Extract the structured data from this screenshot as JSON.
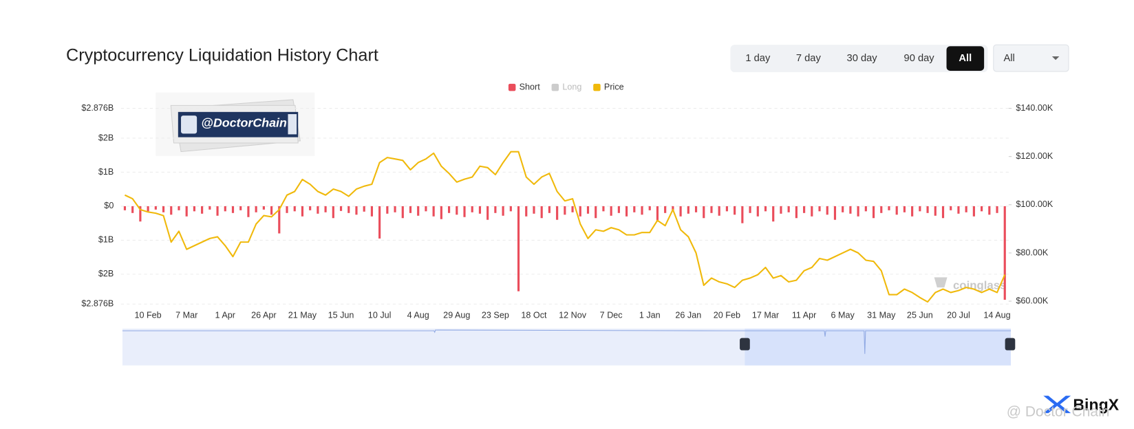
{
  "toolbar": {
    "ranges": [
      "1 day",
      "7 day",
      "30 day",
      "90 day",
      "All"
    ],
    "active": 4,
    "dropdown": "All"
  },
  "watermarks": {
    "badge": "@DoctorChain",
    "source": "coinglass",
    "brand": "BingX",
    "credit": "@ Doctor Chain"
  },
  "chart_data": {
    "type": "combo",
    "title": "Cryptocurrency Liquidation History Chart",
    "legend": "top",
    "grid": true,
    "categories": [
      null,
      null,
      null,
      "10 Feb",
      null,
      null,
      null,
      null,
      "7 Mar",
      null,
      null,
      null,
      null,
      "1 Apr",
      null,
      null,
      null,
      null,
      "26 Apr",
      null,
      null,
      null,
      null,
      "21 May",
      null,
      null,
      null,
      null,
      "15 Jun",
      null,
      null,
      null,
      null,
      "10 Jul",
      null,
      null,
      null,
      null,
      "4 Aug",
      null,
      null,
      null,
      null,
      "29 Aug",
      null,
      null,
      null,
      null,
      "23 Sep",
      null,
      null,
      null,
      null,
      "18 Oct",
      null,
      null,
      null,
      null,
      "12 Nov",
      null,
      null,
      null,
      null,
      "7 Dec",
      null,
      null,
      null,
      null,
      "1 Jan",
      null,
      null,
      null,
      null,
      "26 Jan",
      null,
      null,
      null,
      null,
      "20 Feb",
      null,
      null,
      null,
      null,
      "17 Mar",
      null,
      null,
      null,
      null,
      "11 Apr",
      null,
      null,
      null,
      null,
      "6 May",
      null,
      null,
      null,
      null,
      "31 May",
      null,
      null,
      null,
      null,
      "25 Jun",
      null,
      null,
      null,
      null,
      "20 Jul",
      null,
      null,
      null,
      null,
      "14 Aug",
      null
    ],
    "series": [
      {
        "name": "Short",
        "color": "#ea4d5b",
        "axis": "y",
        "values": [
          -0.12,
          -0.2,
          -0.45,
          -0.15,
          -0.1,
          -0.18,
          -0.25,
          -0.12,
          -0.3,
          -0.15,
          -0.22,
          -0.1,
          -0.28,
          -0.15,
          -0.2,
          -0.12,
          -0.32,
          -0.18,
          -0.1,
          -0.25,
          -0.8,
          -0.2,
          -0.15,
          -0.3,
          -0.12,
          -0.22,
          -0.18,
          -0.35,
          -0.14,
          -0.2,
          -0.25,
          -0.16,
          -0.3,
          -0.95,
          -0.22,
          -0.18,
          -0.35,
          -0.2,
          -0.28,
          -0.15,
          -0.3,
          -0.38,
          -0.2,
          -0.25,
          -0.32,
          -0.18,
          -0.22,
          -0.4,
          -0.2,
          -0.28,
          -0.15,
          -2.5,
          -0.3,
          -0.22,
          -0.35,
          -0.2,
          -0.4,
          -0.25,
          -0.18,
          -0.3,
          -0.22,
          -0.35,
          -0.15,
          -0.28,
          -0.2,
          -0.3,
          -0.18,
          -0.25,
          -0.12,
          -0.45,
          -0.2,
          -0.15,
          -0.3,
          -0.22,
          -0.18,
          -0.35,
          -0.2,
          -0.28,
          -0.15,
          -0.25,
          -0.5,
          -0.2,
          -0.3,
          -0.15,
          -0.45,
          -0.22,
          -0.18,
          -0.35,
          -0.2,
          -0.3,
          -0.15,
          -0.25,
          -0.4,
          -0.18,
          -0.22,
          -0.3,
          -0.15,
          -0.35,
          -0.2,
          -0.12,
          -0.25,
          -0.18,
          -0.3,
          -0.15,
          -0.2,
          -0.28,
          -0.35,
          -0.12,
          -0.22,
          -0.18,
          -0.3,
          -0.15,
          -0.25,
          -0.2,
          -2.75
        ]
      },
      {
        "name": "Long",
        "color": "#cccccc",
        "visible": false
      },
      {
        "name": "Price",
        "color": "#f0b90b",
        "axis": "y2",
        "values": [
          104,
          102.5,
          98,
          97,
          96.5,
          95.5,
          84.5,
          89,
          81.5,
          83,
          84.5,
          86,
          86.7,
          83,
          78.5,
          84.5,
          84.5,
          92,
          95.5,
          95,
          98,
          104,
          105.5,
          110.5,
          108.5,
          105.5,
          104,
          106.5,
          105.5,
          103.5,
          106.5,
          107.7,
          108.5,
          117.5,
          119.6,
          119,
          118.4,
          114.5,
          117.5,
          119,
          121.4,
          116,
          113,
          109.4,
          110.6,
          111.5,
          116,
          115.4,
          112.5,
          117.5,
          122,
          122,
          111.5,
          108.5,
          111.5,
          113,
          105.5,
          101.6,
          102.5,
          92,
          86,
          89.6,
          89,
          90.5,
          89.6,
          87.5,
          87.5,
          88.5,
          88.5,
          93.5,
          91.3,
          98,
          89.6,
          86.7,
          80,
          66.6,
          69.6,
          68,
          67.2,
          65.7,
          68.7,
          69.6,
          71,
          74,
          69.6,
          70.6,
          68,
          68.7,
          72.6,
          74,
          77.7,
          77,
          78.5,
          80,
          81.5,
          80,
          77,
          76.5,
          72.6,
          62.7,
          62.7,
          65,
          63.6,
          61.5,
          59.7,
          63.6,
          65,
          63.6,
          64.4,
          65.7,
          65,
          63.6,
          65,
          63.6,
          71
        ]
      }
    ],
    "ylim": [
      -2.876,
      2.876
    ],
    "yticks": [
      {
        "value": 2.876,
        "label": "$2.876B"
      },
      {
        "value": 2,
        "label": "$2B"
      },
      {
        "value": 1,
        "label": "$1B"
      },
      {
        "value": 0,
        "label": "$0"
      },
      {
        "value": -1,
        "label": "$1B"
      },
      {
        "value": -2,
        "label": "$2B"
      },
      {
        "value": -2.876,
        "label": "$2.876B"
      }
    ],
    "y2lim": [
      58.8,
      140
    ],
    "y2ticks": [
      {
        "value": 140,
        "label": "$140.00K"
      },
      {
        "value": 120,
        "label": "$120.00K"
      },
      {
        "value": 100,
        "label": "$100.00K"
      },
      {
        "value": 80,
        "label": "$80.00K"
      },
      {
        "value": 60,
        "label": "$60.00K"
      }
    ]
  }
}
